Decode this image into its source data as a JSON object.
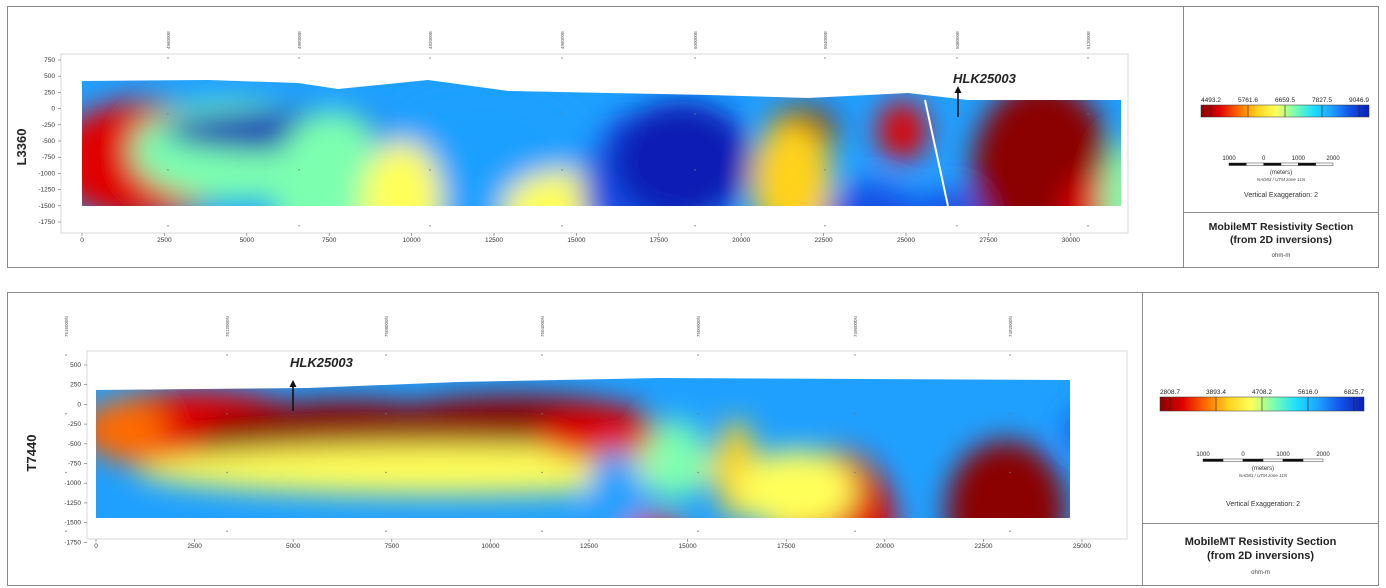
{
  "sections": [
    {
      "line_label": "L3360",
      "x_ticks": [
        "0",
        "2500",
        "5000",
        "7500",
        "10000",
        "12500",
        "15000",
        "17500",
        "20000",
        "22500",
        "25000",
        "27500",
        "30000"
      ],
      "y_ticks": [
        "750",
        "500",
        "250",
        "0",
        "-250",
        "-500",
        "-750",
        "-1000",
        "-1250",
        "-1500",
        "-1750"
      ],
      "top_coords": [
        "496000E",
        "488000E",
        "492000E",
        "496000E",
        "500000E",
        "504000E",
        "508000E",
        "512000E"
      ],
      "well_label": "HLK25003",
      "colorbar_ticks": [
        "4493.2",
        "5761.6",
        "6659.5",
        "7827.5",
        "9046.9"
      ],
      "scale_ticks": [
        "1000",
        "0",
        "1000",
        "2000"
      ],
      "scale_units": "(meters)",
      "projection": "NAD83 / UTM zone 11N",
      "vertical_exaggeration": "Vertical Exaggeration: 2",
      "title_line1": "MobileMT Resistivity Section",
      "title_line2": "(from 2D inversions)",
      "units": "ohm-m"
    },
    {
      "line_label": "T7440",
      "x_ticks": [
        "0",
        "2500",
        "5000",
        "7500",
        "10000",
        "12500",
        "15000",
        "17500",
        "20000",
        "22500",
        "25000"
      ],
      "y_ticks": [
        "500",
        "250",
        "0",
        "-250",
        "-500",
        "-750",
        "-1000",
        "-1250",
        "-1500",
        "-1750"
      ],
      "top_coords": [
        "7516000N",
        "7512000N",
        "7508000N",
        "7504000N",
        "7500000N",
        "7496000N",
        "7492000N"
      ],
      "well_label": "HLK25003",
      "colorbar_ticks": [
        "2808.7",
        "3893.4",
        "4708.2",
        "5616.0",
        "6825.7"
      ],
      "scale_ticks": [
        "1000",
        "0",
        "1000",
        "2000"
      ],
      "scale_units": "(meters)",
      "projection": "NAD83 / UTM zone 11N",
      "vertical_exaggeration": "Vertical Exaggeration: 2",
      "title_line1": "MobileMT Resistivity Section",
      "title_line2": "(from 2D inversions)",
      "units": "ohm-m"
    }
  ],
  "colors": {
    "colormap": [
      "#8b0000",
      "#e00000",
      "#ff6a00",
      "#ffd21e",
      "#ffff5a",
      "#7dffb0",
      "#1ee0ff",
      "#1fa0ff",
      "#1450e6",
      "#0a1fb4"
    ],
    "frame": "#8a8a8a"
  }
}
